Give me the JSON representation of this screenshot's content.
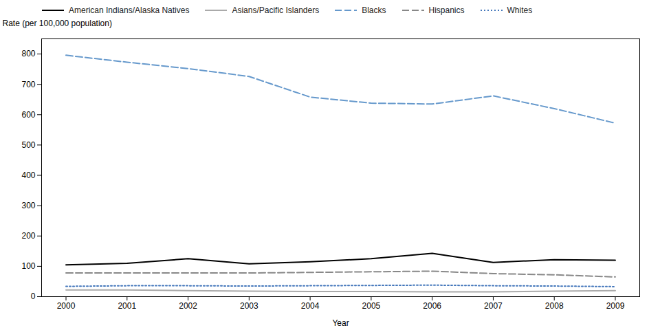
{
  "chart_data": {
    "type": "line",
    "xlabel": "Year",
    "ylabel": "Rate (per 100,000 population)",
    "x": [
      2000,
      2001,
      2002,
      2003,
      2004,
      2005,
      2006,
      2007,
      2008,
      2009
    ],
    "series": [
      {
        "name": "American Indians/Alaska Natives",
        "color": "#000000",
        "line_style": "solid",
        "values": [
          105,
          110,
          125,
          108,
          115,
          125,
          143,
          113,
          122,
          120
        ]
      },
      {
        "name": "Asians/Pacific Islanders",
        "color": "#aaaaaa",
        "line_style": "solid",
        "values": [
          22,
          22,
          20,
          18,
          17,
          17,
          16,
          16,
          18,
          20
        ]
      },
      {
        "name": "Blacks",
        "color": "#6699cc",
        "line_style": "dashed",
        "values": [
          796,
          773,
          752,
          726,
          658,
          638,
          635,
          662,
          620,
          572
        ]
      },
      {
        "name": "Hispanics",
        "color": "#888888",
        "line_style": "dashed",
        "values": [
          78,
          78,
          78,
          78,
          80,
          82,
          84,
          76,
          72,
          65
        ]
      },
      {
        "name": "Whites",
        "color": "#4477bb",
        "line_style": "dotted",
        "values": [
          34,
          36,
          36,
          35,
          36,
          37,
          38,
          36,
          35,
          33
        ]
      }
    ],
    "xlim": [
      1999.6,
      2009.4
    ],
    "xticks": [
      2000,
      2001,
      2002,
      2003,
      2004,
      2005,
      2006,
      2007,
      2008,
      2009
    ],
    "ylim": [
      0,
      850
    ],
    "yticks": [
      0,
      100,
      200,
      300,
      400,
      500,
      600,
      700,
      800
    ],
    "grid": false
  }
}
